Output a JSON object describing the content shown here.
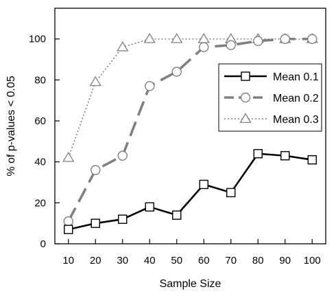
{
  "chart_data": {
    "type": "line",
    "title": "",
    "xlabel": "Sample Size",
    "ylabel": "% of p-values < 0.05",
    "x": [
      10,
      20,
      30,
      40,
      50,
      60,
      70,
      80,
      90,
      100
    ],
    "ylim": [
      0,
      115
    ],
    "yticks": [
      0,
      20,
      40,
      60,
      80,
      100
    ],
    "grid": false,
    "legend_position": "right",
    "series": [
      {
        "name": "Mean 0.1",
        "values": [
          7,
          10,
          12,
          18,
          14,
          29,
          25,
          44,
          43,
          41
        ],
        "color": "#000000",
        "dash": "solid",
        "marker": "square"
      },
      {
        "name": "Mean 0.2",
        "values": [
          11,
          36,
          43,
          77,
          84,
          96,
          97,
          99,
          100,
          100
        ],
        "color": "#808080",
        "dash": "long-dash",
        "marker": "circle"
      },
      {
        "name": "Mean 0.3",
        "values": [
          42,
          79,
          96,
          100,
          100,
          100,
          100,
          100,
          100,
          100
        ],
        "color": "#808080",
        "dash": "dotted",
        "marker": "triangle"
      }
    ]
  }
}
